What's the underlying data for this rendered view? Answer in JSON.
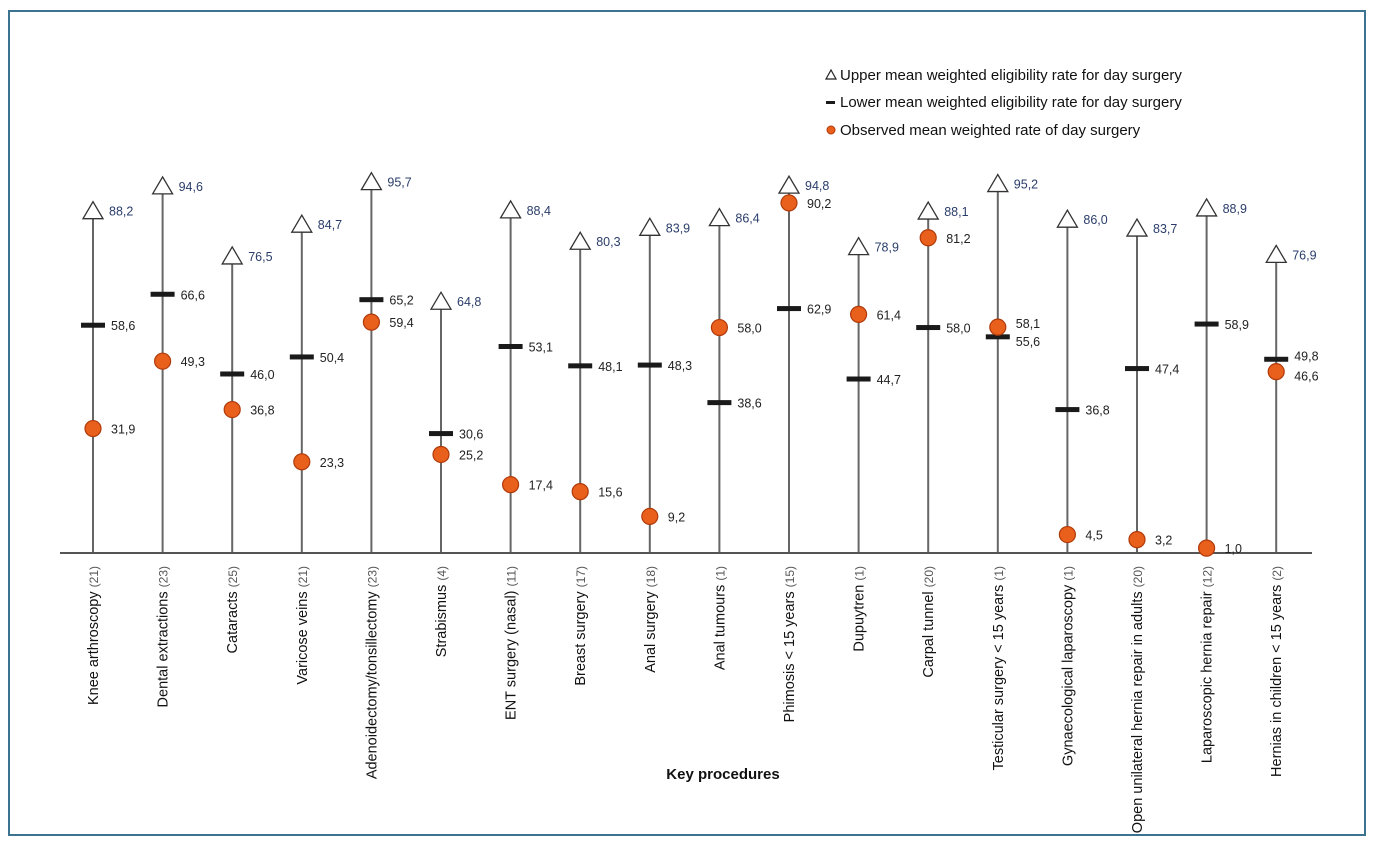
{
  "chart_data": {
    "type": "range-dot",
    "xlabel": "Key procedures",
    "ylim": [
      0,
      100
    ],
    "grid": false,
    "legend_position": "top-right",
    "legend": [
      {
        "key": "upper",
        "label": "Upper mean weighted eligibility rate for day surgery"
      },
      {
        "key": "lower",
        "label": "Lower mean weighted eligibility rate for day surgery"
      },
      {
        "key": "observed",
        "label": "Observed mean weighted rate of day surgery"
      }
    ],
    "colors": {
      "observed_fill": "#e8601c",
      "observed_stroke": "#b03a0a",
      "line": "#666666",
      "lower_mark": "#1a1a1a",
      "upper_label": "#2a3d6a",
      "frame": "#3b7391"
    },
    "categories": [
      {
        "label": "Knee arthroscopy",
        "count": "(21)",
        "upper": 88.2,
        "upper_label": "88,2",
        "lower": 58.6,
        "lower_label": "58,6",
        "observed": 31.9,
        "observed_label": "31,9"
      },
      {
        "label": "Dental extractions",
        "count": "(23)",
        "upper": 94.6,
        "upper_label": "94,6",
        "lower": 66.6,
        "lower_label": "66,6",
        "observed": 49.3,
        "observed_label": "49,3"
      },
      {
        "label": "Cataracts",
        "count": "(25)",
        "upper": 76.5,
        "upper_label": "76,5",
        "lower": 46.0,
        "lower_label": "46,0",
        "observed": 36.8,
        "observed_label": "36,8"
      },
      {
        "label": "Varicose veins",
        "count": "(21)",
        "upper": 84.7,
        "upper_label": "84,7",
        "lower": 50.4,
        "lower_label": "50,4",
        "observed": 23.3,
        "observed_label": "23,3"
      },
      {
        "label": "Adenoidectomy/tonsillectomy",
        "count": "(23)",
        "upper": 95.7,
        "upper_label": "95,7",
        "lower": 65.2,
        "lower_label": "65,2",
        "observed": 59.4,
        "observed_label": "59,4"
      },
      {
        "label": "Strabismus",
        "count": "(4)",
        "upper": 64.8,
        "upper_label": "64,8",
        "lower": 30.6,
        "lower_label": "30,6",
        "observed": 25.2,
        "observed_label": "25,2"
      },
      {
        "label": "ENT surgery (nasal)",
        "count": "(11)",
        "upper": 88.4,
        "upper_label": "88,4",
        "lower": 53.1,
        "lower_label": "53,1",
        "observed": 17.4,
        "observed_label": "17,4"
      },
      {
        "label": "Breast surgery",
        "count": "(17)",
        "upper": 80.3,
        "upper_label": "80,3",
        "lower": 48.1,
        "lower_label": "48,1",
        "observed": 15.6,
        "observed_label": "15,6"
      },
      {
        "label": "Anal surgery",
        "count": "(18)",
        "upper": 83.9,
        "upper_label": "83,9",
        "lower": 48.3,
        "lower_label": "48,3",
        "observed": 9.2,
        "observed_label": "9,2"
      },
      {
        "label": "Anal tumours",
        "count": "(1)",
        "upper": 86.4,
        "upper_label": "86,4",
        "lower": 38.6,
        "lower_label": "38,6",
        "observed": 58.0,
        "observed_label": "58,0"
      },
      {
        "label": "Phimosis < 15 years",
        "count": "(15)",
        "upper": 94.8,
        "upper_label": "94,8",
        "lower": 62.9,
        "lower_label": "62,9",
        "observed": 90.2,
        "observed_label": "90,2"
      },
      {
        "label": "Dupuytren",
        "count": "(1)",
        "upper": 78.9,
        "upper_label": "78,9",
        "lower": 44.7,
        "lower_label": "44,7",
        "observed": 61.4,
        "observed_label": "61,4"
      },
      {
        "label": "Carpal tunnel",
        "count": "(20)",
        "upper": 88.1,
        "upper_label": "88,1",
        "lower": 58.0,
        "lower_label": "58,0",
        "observed": 81.2,
        "observed_label": "81,2"
      },
      {
        "label": "Testicular surgery < 15 years",
        "count": "(1)",
        "upper": 95.2,
        "upper_label": "95,2",
        "lower": 55.6,
        "lower_label": "55,6",
        "observed": 58.1,
        "observed_label": "58,1"
      },
      {
        "label": "Gynaecological laparoscopy",
        "count": "(1)",
        "upper": 86.0,
        "upper_label": "86,0",
        "lower": 36.8,
        "lower_label": "36,8",
        "observed": 4.5,
        "observed_label": "4,5"
      },
      {
        "label": "Open unilateral hernia repair in adults",
        "count": "(20)",
        "upper": 83.7,
        "upper_label": "83,7",
        "lower": 47.4,
        "lower_label": "47,4",
        "observed": 3.2,
        "observed_label": "3,2"
      },
      {
        "label": "Laparoscopic hernia repair",
        "count": "(12)",
        "upper": 88.9,
        "upper_label": "88,9",
        "lower": 58.9,
        "lower_label": "58,9",
        "observed": 1.0,
        "observed_label": "1,0"
      },
      {
        "label": "Hernias in children < 15 years",
        "count": "(2)",
        "upper": 76.9,
        "upper_label": "76,9",
        "lower": 49.8,
        "lower_label": "49,8",
        "observed": 46.6,
        "observed_label": "46,6"
      }
    ]
  }
}
